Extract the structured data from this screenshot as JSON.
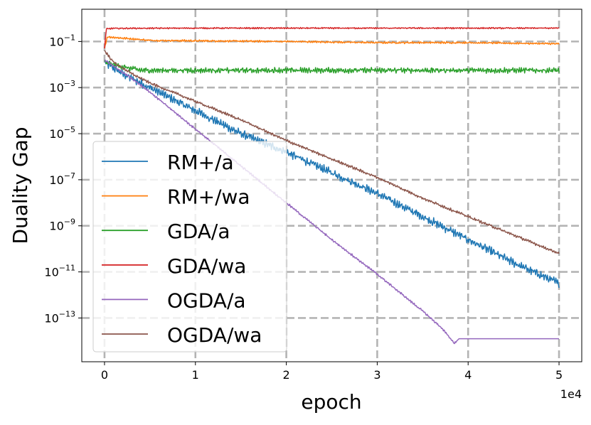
{
  "chart_data": {
    "type": "line",
    "title": "",
    "xlabel": "epoch",
    "ylabel": "Duality Gap",
    "x_offset_label": "1e4",
    "xlim": [
      -2500,
      52500
    ],
    "ylim_log10": [
      -14.9,
      0.4
    ],
    "yscale": "log",
    "grid": true,
    "legend_position": "left",
    "x_ticks": [
      {
        "value": 0,
        "label": "0"
      },
      {
        "value": 10000,
        "label": "1"
      },
      {
        "value": 20000,
        "label": "2"
      },
      {
        "value": 30000,
        "label": "3"
      },
      {
        "value": 40000,
        "label": "4"
      },
      {
        "value": 50000,
        "label": "5"
      }
    ],
    "y_ticks": [
      {
        "exp": -1,
        "base": "10",
        "sup": "−1"
      },
      {
        "exp": -3,
        "base": "10",
        "sup": "−3"
      },
      {
        "exp": -5,
        "base": "10",
        "sup": "−5"
      },
      {
        "exp": -7,
        "base": "10",
        "sup": "−7"
      },
      {
        "exp": -9,
        "base": "10",
        "sup": "−9"
      },
      {
        "exp": -11,
        "base": "10",
        "sup": "−11"
      },
      {
        "exp": -13,
        "base": "10",
        "sup": "−13"
      }
    ],
    "series": [
      {
        "name": "RM+/a",
        "color": "#1f77b4",
        "x": [
          0,
          2000,
          5000,
          10000,
          15000,
          20000,
          25000,
          30000,
          35000,
          40000,
          45000,
          50000
        ],
        "log10_y": [
          -1.9,
          -2.4,
          -3.0,
          -4.0,
          -5.0,
          -5.8,
          -6.7,
          -7.6,
          -8.6,
          -9.6,
          -10.6,
          -11.5
        ],
        "noise": 0.18
      },
      {
        "name": "RM+/wa",
        "color": "#ff7f0e",
        "x": [
          0,
          300,
          5000,
          10000,
          20000,
          30000,
          40000,
          50000
        ],
        "log10_y": [
          -1.3,
          -0.8,
          -0.95,
          -0.97,
          -1.0,
          -1.05,
          -1.05,
          -1.1
        ],
        "noise": 0.04
      },
      {
        "name": "GDA/a",
        "color": "#2ca02c",
        "x": [
          0,
          2000,
          4000,
          10000,
          20000,
          30000,
          40000,
          50000
        ],
        "log10_y": [
          -1.9,
          -2.1,
          -2.25,
          -2.25,
          -2.25,
          -2.25,
          -2.25,
          -2.25
        ],
        "noise": 0.12
      },
      {
        "name": "GDA/wa",
        "color": "#d62728",
        "x": [
          0,
          200,
          1000,
          10000,
          20000,
          30000,
          40000,
          50000
        ],
        "log10_y": [
          -1.3,
          -0.45,
          -0.43,
          -0.42,
          -0.42,
          -0.42,
          -0.42,
          -0.42
        ],
        "noise": 0.03
      },
      {
        "name": "OGDA/a",
        "color": "#9467bd",
        "x": [
          0,
          3000,
          5000,
          10000,
          15000,
          20000,
          25000,
          30000,
          35000,
          37000,
          38500,
          39000,
          45000,
          50000
        ],
        "log10_y": [
          -1.8,
          -2.6,
          -3.2,
          -4.8,
          -6.4,
          -8.0,
          -9.6,
          -11.1,
          -12.7,
          -13.4,
          -14.1,
          -13.9,
          -13.9,
          -13.9
        ],
        "noise": 0.05,
        "flat_after": 38700
      },
      {
        "name": "OGDA/wa",
        "color": "#8c564b",
        "x": [
          0,
          1000,
          3000,
          5000,
          10000,
          15000,
          20000,
          25000,
          30000,
          35000,
          40000,
          45000,
          50000
        ],
        "log10_y": [
          -1.4,
          -1.9,
          -2.4,
          -2.8,
          -3.6,
          -4.4,
          -5.3,
          -6.1,
          -6.9,
          -7.8,
          -8.6,
          -9.4,
          -10.2
        ],
        "noise": 0.06
      }
    ]
  }
}
